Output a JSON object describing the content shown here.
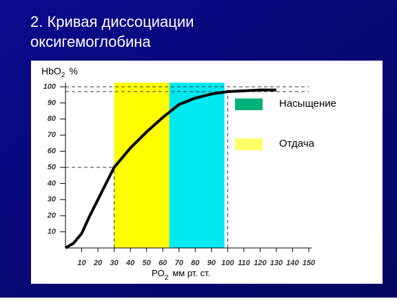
{
  "chart_data": {
    "type": "line",
    "title": [
      "2. Кривая диссоциации",
      "оксигемоглобина"
    ],
    "y_label": {
      "text": "HbO",
      "sub": "2",
      "unit": "%"
    },
    "x_label": {
      "text": "PO",
      "sub": "2",
      "unit": "мм рт. ст."
    },
    "x": [
      0,
      5,
      10,
      15,
      20,
      25,
      30,
      40,
      50,
      60,
      70,
      80,
      90,
      100,
      110,
      120,
      130
    ],
    "series": [
      {
        "color": "#000000",
        "values": [
          0,
          3,
          9,
          20,
          30,
          40,
          50,
          62,
          72,
          81,
          89,
          93,
          95.5,
          97,
          97.5,
          98,
          98
        ]
      }
    ],
    "bands": [
      {
        "name": "Насыщение",
        "color": "#00e8f0",
        "legend_color": "#00b27a",
        "range": [
          64,
          98
        ]
      },
      {
        "name": "Отдача",
        "color": "#ffff00",
        "legend_color": "#ffff66",
        "range": [
          30,
          64
        ]
      }
    ],
    "hlines": [
      50,
      97,
      100
    ],
    "vlines": [
      30,
      100
    ],
    "xlim": [
      0,
      150
    ],
    "ylim": [
      0,
      100
    ],
    "xticks": [
      10,
      20,
      30,
      40,
      50,
      60,
      70,
      80,
      90,
      100,
      110,
      120,
      130,
      140,
      150
    ],
    "yticks": [
      10,
      20,
      30,
      40,
      50,
      60,
      70,
      80,
      90,
      100
    ]
  }
}
